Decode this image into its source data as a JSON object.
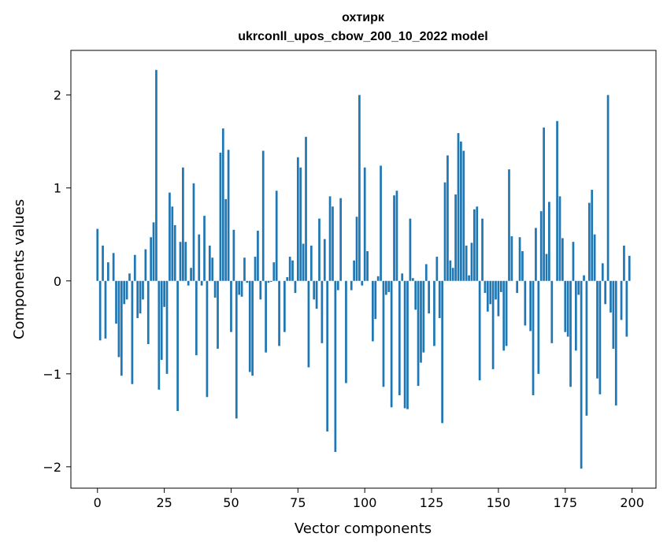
{
  "chart_data": {
    "type": "bar",
    "title": "охтирк",
    "subtitle": "ukrconll_upos_cbow_200_10_2022 model",
    "xlabel": "Vector components",
    "ylabel": "Components values",
    "xlim": [
      -9.95,
      208.95
    ],
    "ylim": [
      -2.23,
      2.48
    ],
    "xticks": [
      0,
      25,
      50,
      75,
      100,
      125,
      150,
      175,
      200
    ],
    "xtick_labels": [
      "0",
      "25",
      "50",
      "75",
      "100",
      "125",
      "150",
      "175",
      "200"
    ],
    "yticks": [
      -2,
      -1,
      0,
      1,
      2
    ],
    "ytick_labels": [
      "−2",
      "−1",
      "0",
      "1",
      "2"
    ],
    "bar_color": "#1f77b4",
    "grid": false,
    "legend": "none",
    "x": [
      0,
      1,
      2,
      3,
      4,
      5,
      6,
      7,
      8,
      9,
      10,
      11,
      12,
      13,
      14,
      15,
      16,
      17,
      18,
      19,
      20,
      21,
      22,
      23,
      24,
      25,
      26,
      27,
      28,
      29,
      30,
      31,
      32,
      33,
      34,
      35,
      36,
      37,
      38,
      39,
      40,
      41,
      42,
      43,
      44,
      45,
      46,
      47,
      48,
      49,
      50,
      51,
      52,
      53,
      54,
      55,
      56,
      57,
      58,
      59,
      60,
      61,
      62,
      63,
      64,
      65,
      66,
      67,
      68,
      69,
      70,
      71,
      72,
      73,
      74,
      75,
      76,
      77,
      78,
      79,
      80,
      81,
      82,
      83,
      84,
      85,
      86,
      87,
      88,
      89,
      90,
      91,
      92,
      93,
      94,
      95,
      96,
      97,
      98,
      99,
      100,
      101,
      102,
      103,
      104,
      105,
      106,
      107,
      108,
      109,
      110,
      111,
      112,
      113,
      114,
      115,
      116,
      117,
      118,
      119,
      120,
      121,
      122,
      123,
      124,
      125,
      126,
      127,
      128,
      129,
      130,
      131,
      132,
      133,
      134,
      135,
      136,
      137,
      138,
      139,
      140,
      141,
      142,
      143,
      144,
      145,
      146,
      147,
      148,
      149,
      150,
      151,
      152,
      153,
      154,
      155,
      156,
      157,
      158,
      159,
      160,
      161,
      162,
      163,
      164,
      165,
      166,
      167,
      168,
      169,
      170,
      171,
      172,
      173,
      174,
      175,
      176,
      177,
      178,
      179,
      180,
      181,
      182,
      183,
      184,
      185,
      186,
      187,
      188,
      189,
      190,
      191,
      192,
      193,
      194,
      195,
      196,
      197,
      198,
      199
    ],
    "values": [
      0.56,
      -0.64,
      0.38,
      -0.62,
      0.2,
      0.0,
      0.3,
      -0.46,
      -0.82,
      -1.02,
      -0.25,
      -0.2,
      0.08,
      -1.11,
      0.28,
      -0.4,
      -0.35,
      -0.2,
      0.34,
      -0.68,
      0.47,
      0.63,
      2.27,
      -1.17,
      -0.85,
      -0.28,
      -1.0,
      0.95,
      0.8,
      0.6,
      -1.4,
      0.42,
      1.22,
      0.42,
      -0.05,
      0.14,
      1.05,
      -0.8,
      0.5,
      -0.05,
      0.7,
      -1.25,
      0.38,
      0.25,
      -0.18,
      -0.73,
      1.38,
      1.64,
      0.88,
      1.41,
      -0.55,
      0.55,
      -1.48,
      -0.15,
      -0.17,
      0.25,
      -0.02,
      -0.98,
      -1.02,
      0.26,
      0.54,
      -0.2,
      1.4,
      -0.77,
      -0.02,
      -0.01,
      0.2,
      0.97,
      -0.7,
      0.0,
      -0.55,
      0.04,
      0.26,
      0.22,
      -0.13,
      1.33,
      1.22,
      0.4,
      1.55,
      -0.93,
      0.38,
      -0.2,
      -0.3,
      0.67,
      -0.67,
      0.45,
      -1.62,
      0.91,
      0.8,
      -1.84,
      -0.1,
      0.89,
      0.0,
      -1.1,
      0.0,
      -0.1,
      0.22,
      0.69,
      2.0,
      -0.05,
      1.22,
      0.32,
      0.0,
      -0.65,
      -0.41,
      0.05,
      1.24,
      -1.14,
      -0.15,
      -0.12,
      -1.36,
      0.92,
      0.97,
      -1.23,
      0.08,
      -1.37,
      -1.38,
      0.67,
      0.03,
      -0.31,
      -1.13,
      -0.88,
      -0.77,
      0.18,
      -0.35,
      0.0,
      -0.7,
      0.26,
      -0.4,
      -1.53,
      1.06,
      1.35,
      0.22,
      0.14,
      0.93,
      1.59,
      1.5,
      1.4,
      0.38,
      0.06,
      0.41,
      0.77,
      0.8,
      -1.07,
      0.67,
      -0.13,
      -0.33,
      -0.25,
      -0.95,
      -0.2,
      -0.38,
      -0.12,
      -0.75,
      -0.7,
      1.2,
      0.48,
      0.0,
      -0.13,
      0.47,
      0.32,
      -0.48,
      0.0,
      -0.54,
      -1.23,
      0.57,
      -1.0,
      0.75,
      1.65,
      0.29,
      0.85,
      -0.67,
      0.0,
      1.72,
      0.91,
      0.46,
      -0.55,
      -0.6,
      -1.14,
      0.42,
      -0.75,
      -0.15,
      -2.02,
      0.06,
      -1.45,
      0.84,
      0.98,
      0.5,
      -1.05,
      -1.22,
      0.19,
      -0.25,
      2.0,
      -0.34,
      -0.73,
      -1.34,
      0.0,
      -0.42,
      0.38,
      -0.6,
      0.27
    ]
  }
}
